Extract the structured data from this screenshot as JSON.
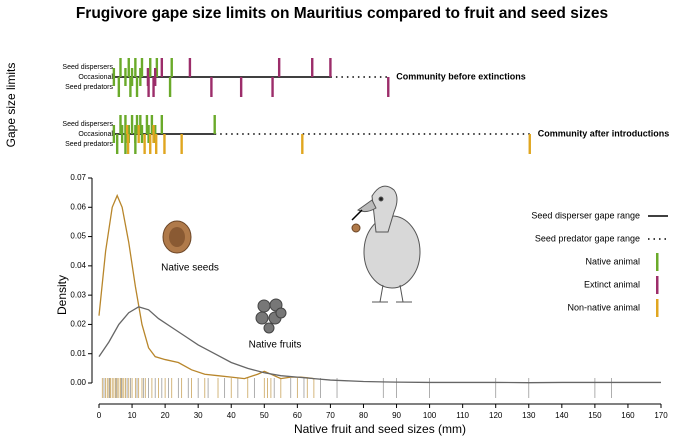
{
  "chart_data": [
    {
      "type": "gape-range",
      "title": "Frugivore gape size limits on Mauritius compared to fruit and seed sizes",
      "ylabel": "Gape size limits",
      "role_labels": {
        "disperser": "Seed dispersers",
        "occasional": "Occasional",
        "predator": "Seed predators"
      },
      "xlim": [
        0,
        170
      ],
      "rows": [
        {
          "name": "Community before extinctions",
          "solid_range": [
            0,
            70
          ],
          "dotted_range": [
            70,
            87.5
          ],
          "marks": [
            {
              "x": 6.5,
              "role": "disperser",
              "color": "#6aaa2a"
            },
            {
              "x": 9,
              "role": "disperser",
              "color": "#6aaa2a"
            },
            {
              "x": 11,
              "role": "disperser",
              "color": "#6aaa2a"
            },
            {
              "x": 13,
              "role": "disperser",
              "color": "#6aaa2a"
            },
            {
              "x": 15.5,
              "role": "disperser",
              "color": "#6aaa2a"
            },
            {
              "x": 17.5,
              "role": "disperser",
              "color": "#6aaa2a"
            },
            {
              "x": 22,
              "role": "disperser",
              "color": "#6aaa2a"
            },
            {
              "x": 19,
              "role": "disperser",
              "color": "#9c2d6a"
            },
            {
              "x": 27.5,
              "role": "disperser",
              "color": "#9c2d6a"
            },
            {
              "x": 54.5,
              "role": "disperser",
              "color": "#9c2d6a"
            },
            {
              "x": 64.5,
              "role": "disperser",
              "color": "#9c2d6a"
            },
            {
              "x": 70,
              "role": "disperser",
              "color": "#9c2d6a"
            },
            {
              "x": 4.5,
              "role": "occasional",
              "color": "#6aaa2a"
            },
            {
              "x": 8,
              "role": "occasional",
              "color": "#6aaa2a"
            },
            {
              "x": 10,
              "role": "occasional",
              "color": "#6aaa2a"
            },
            {
              "x": 12.5,
              "role": "occasional",
              "color": "#6aaa2a"
            },
            {
              "x": 14.8,
              "role": "occasional",
              "color": "#9c2d6a"
            },
            {
              "x": 17,
              "role": "occasional",
              "color": "#9c2d6a"
            },
            {
              "x": 6,
              "role": "predator",
              "color": "#6aaa2a"
            },
            {
              "x": 9.5,
              "role": "predator",
              "color": "#6aaa2a"
            },
            {
              "x": 11.5,
              "role": "predator",
              "color": "#6aaa2a"
            },
            {
              "x": 21.5,
              "role": "predator",
              "color": "#6aaa2a"
            },
            {
              "x": 15,
              "role": "predator",
              "color": "#9c2d6a"
            },
            {
              "x": 16.5,
              "role": "predator",
              "color": "#9c2d6a"
            },
            {
              "x": 34,
              "role": "predator",
              "color": "#9c2d6a"
            },
            {
              "x": 43,
              "role": "predator",
              "color": "#9c2d6a"
            },
            {
              "x": 52.5,
              "role": "predator",
              "color": "#9c2d6a"
            },
            {
              "x": 87.5,
              "role": "predator",
              "color": "#9c2d6a"
            }
          ]
        },
        {
          "name": "Community after introductions",
          "solid_range": [
            0,
            35
          ],
          "dotted_range": [
            35,
            130.3
          ],
          "marks": [
            {
              "x": 6.5,
              "role": "disperser",
              "color": "#6aaa2a"
            },
            {
              "x": 8,
              "role": "disperser",
              "color": "#6aaa2a"
            },
            {
              "x": 10,
              "role": "disperser",
              "color": "#6aaa2a"
            },
            {
              "x": 11.5,
              "role": "disperser",
              "color": "#6aaa2a"
            },
            {
              "x": 12.5,
              "role": "disperser",
              "color": "#6aaa2a"
            },
            {
              "x": 14.5,
              "role": "disperser",
              "color": "#6aaa2a"
            },
            {
              "x": 16,
              "role": "disperser",
              "color": "#6aaa2a"
            },
            {
              "x": 19,
              "role": "disperser",
              "color": "#6aaa2a"
            },
            {
              "x": 35,
              "role": "disperser",
              "color": "#6aaa2a"
            },
            {
              "x": 4.5,
              "role": "occasional",
              "color": "#6aaa2a"
            },
            {
              "x": 7,
              "role": "occasional",
              "color": "#6aaa2a"
            },
            {
              "x": 9,
              "role": "occasional",
              "color": "#6aaa2a"
            },
            {
              "x": 11,
              "role": "occasional",
              "color": "#6aaa2a"
            },
            {
              "x": 13,
              "role": "occasional",
              "color": "#6aaa2a"
            },
            {
              "x": 15,
              "role": "occasional",
              "color": "#6aaa2a"
            },
            {
              "x": 17,
              "role": "occasional",
              "color": "#6aaa2a"
            },
            {
              "x": 8.5,
              "role": "occasional",
              "color": "#e0a620"
            },
            {
              "x": 12,
              "role": "occasional",
              "color": "#e0a620"
            },
            {
              "x": 16.5,
              "role": "occasional",
              "color": "#e0a620"
            },
            {
              "x": 5.5,
              "role": "predator",
              "color": "#6aaa2a"
            },
            {
              "x": 8,
              "role": "predator",
              "color": "#6aaa2a"
            },
            {
              "x": 11,
              "role": "predator",
              "color": "#6aaa2a"
            },
            {
              "x": 8.8,
              "role": "predator",
              "color": "#e0a620"
            },
            {
              "x": 13.8,
              "role": "predator",
              "color": "#e0a620"
            },
            {
              "x": 15.5,
              "role": "predator",
              "color": "#e0a620"
            },
            {
              "x": 17.3,
              "role": "predator",
              "color": "#e0a620"
            },
            {
              "x": 19.8,
              "role": "predator",
              "color": "#e0a620"
            },
            {
              "x": 25,
              "role": "predator",
              "color": "#e0a620"
            },
            {
              "x": 61.5,
              "role": "predator",
              "color": "#e0a620"
            },
            {
              "x": 130.3,
              "role": "predator",
              "color": "#e0a620"
            }
          ]
        }
      ]
    },
    {
      "type": "density",
      "xlabel": "Native fruit and seed sizes (mm)",
      "ylabel": "Density",
      "xlim": [
        0,
        170
      ],
      "xticks": [
        0,
        10,
        20,
        30,
        40,
        50,
        60,
        70,
        80,
        90,
        100,
        110,
        120,
        130,
        140,
        150,
        160,
        170
      ],
      "ylim": [
        0,
        0.07
      ],
      "yticks": [
        {
          "value": 0,
          "label": "0.00"
        },
        {
          "value": 0.01,
          "label": "0.01"
        },
        {
          "value": 0.02,
          "label": "0.02"
        },
        {
          "value": 0.03,
          "label": "0.03"
        },
        {
          "value": 0.04,
          "label": "0.04"
        },
        {
          "value": 0.05,
          "label": "0.05"
        },
        {
          "value": 0.06,
          "label": "0.06"
        },
        {
          "value": 0.07,
          "label": "0.07"
        }
      ],
      "series": [
        {
          "name": "Native seeds",
          "color": "#b8862b",
          "x": [
            0,
            2,
            4,
            5.5,
            7,
            9,
            11,
            13,
            15,
            17,
            20,
            24,
            28,
            32,
            36,
            40,
            44,
            48,
            50,
            52,
            55,
            58,
            61,
            63,
            65
          ],
          "values": [
            0.023,
            0.045,
            0.06,
            0.064,
            0.06,
            0.048,
            0.033,
            0.02,
            0.012,
            0.009,
            0.008,
            0.007,
            0.0045,
            0.003,
            0.0025,
            0.002,
            0.0015,
            0.003,
            0.004,
            0.003,
            0.0015,
            0.002,
            0.002,
            0.0018,
            0.0015
          ]
        },
        {
          "name": "Native fruits",
          "color": "#666666",
          "x": [
            0,
            3,
            6,
            9,
            12,
            15,
            18,
            22,
            26,
            30,
            35,
            40,
            45,
            50,
            55,
            60,
            65,
            70,
            80,
            90,
            100,
            110,
            120,
            130,
            140,
            150,
            160,
            170
          ],
          "values": [
            0.009,
            0.014,
            0.02,
            0.024,
            0.026,
            0.025,
            0.022,
            0.019,
            0.016,
            0.013,
            0.01,
            0.007,
            0.005,
            0.0035,
            0.0025,
            0.002,
            0.0015,
            0.001,
            0.0005,
            0.0003,
            0.0002,
            0.0002,
            0.0002,
            0.0001,
            0.0002,
            0.0002,
            0.0002,
            0.0002
          ]
        }
      ],
      "rug": [
        {
          "color": "#c9a45c",
          "values": [
            1,
            2,
            2.5,
            3,
            3.5,
            4,
            4.5,
            5,
            5.5,
            6,
            6.5,
            7,
            7.5,
            8,
            9,
            10,
            11,
            12,
            13,
            14,
            16,
            18,
            20,
            22,
            25,
            28,
            32,
            36,
            40,
            45,
            50,
            51,
            52,
            55,
            60,
            63,
            65
          ]
        },
        {
          "color": "#9a9a9a",
          "values": [
            1.5,
            3.2,
            5.2,
            6.8,
            8.5,
            9.5,
            11.5,
            13.5,
            15,
            17,
            19,
            21,
            24,
            27,
            30,
            33,
            38,
            42,
            47,
            53,
            58,
            62,
            67,
            72,
            86,
            90,
            100,
            120,
            130,
            150,
            155
          ]
        }
      ],
      "legend": [
        {
          "label": "Seed disperser gape range",
          "style": "solid"
        },
        {
          "label": "Seed predator gape range",
          "style": "dotted"
        },
        {
          "label": "Native animal",
          "color": "#6aaa2a"
        },
        {
          "label": "Extinct animal",
          "color": "#9c2d6a"
        },
        {
          "label": "Non-native animal",
          "color": "#e0a620"
        }
      ]
    }
  ]
}
